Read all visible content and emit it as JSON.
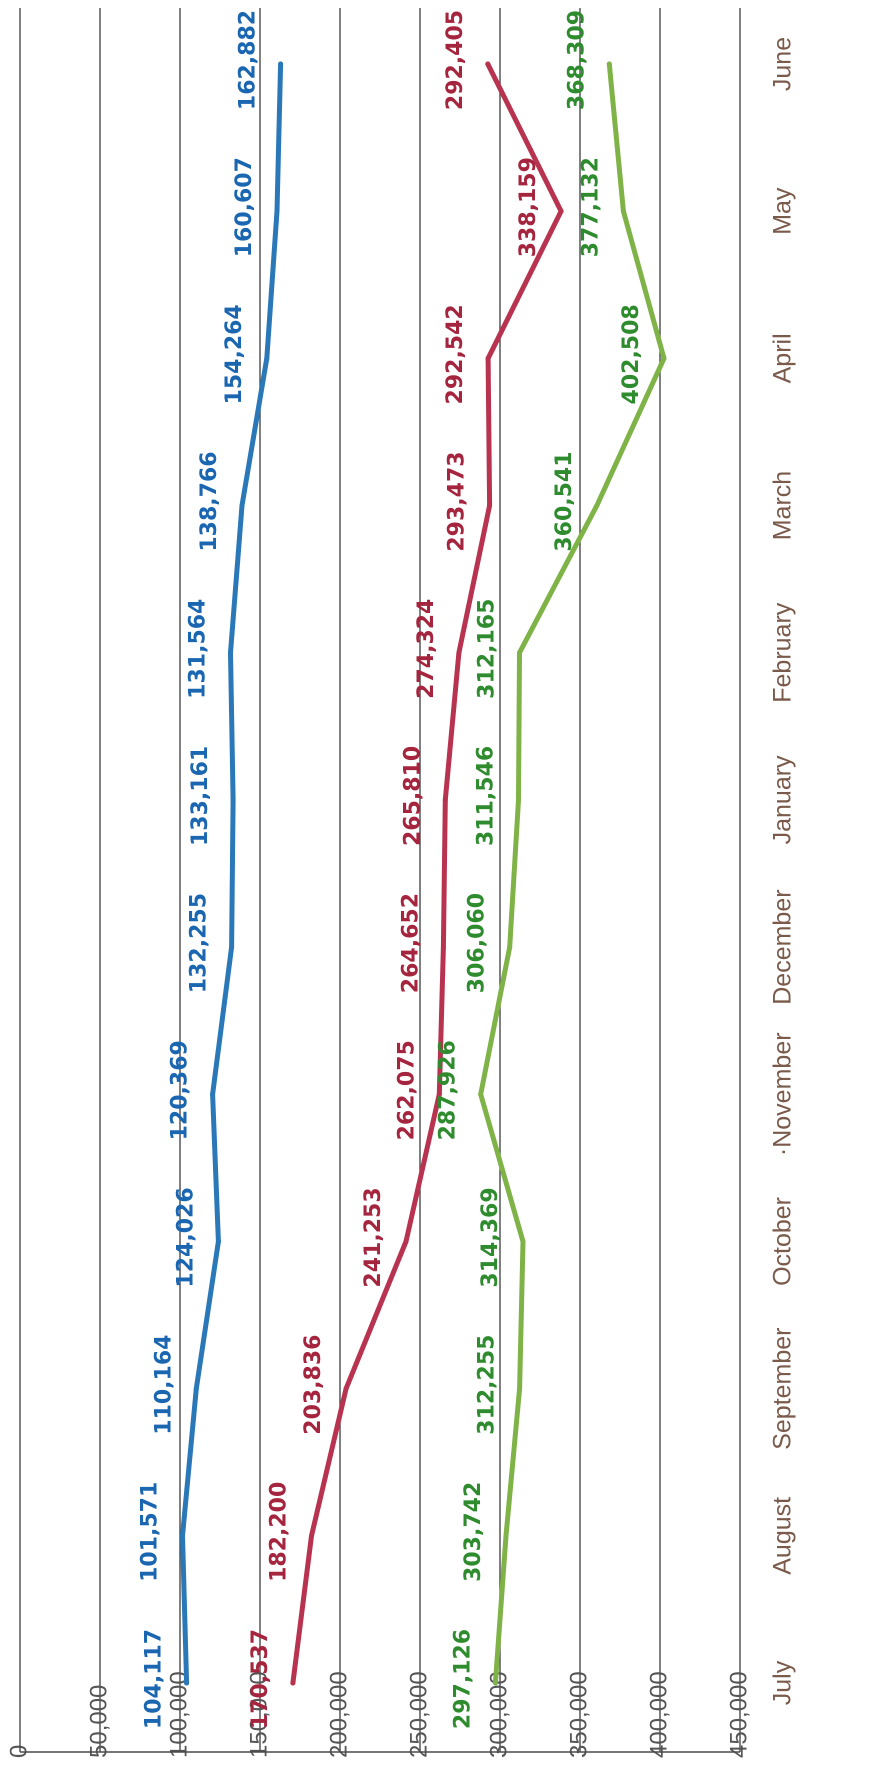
{
  "chart_data": {
    "type": "line",
    "title": "",
    "xlabel": "",
    "ylabel": "",
    "categories": [
      "July",
      "August",
      "September",
      "October",
      "November",
      "December",
      "January",
      "February",
      "March",
      "April",
      "May",
      "June"
    ],
    "category_tick_labels": [
      "July",
      "August",
      "September",
      "October",
      "·November",
      "December",
      "January",
      "February",
      "March",
      "April",
      "May",
      "June"
    ],
    "ylim": [
      0,
      450000
    ],
    "yticks": [
      0,
      50000,
      100000,
      150000,
      200000,
      250000,
      300000,
      350000,
      400000,
      450000
    ],
    "ytick_labels": [
      "0",
      "50,000",
      "100,000",
      "150,000",
      "200,000",
      "250,000",
      "300,000",
      "350,000",
      "400,000",
      "450,000"
    ],
    "grid": true,
    "legend": "none",
    "orientation": "rotated 90 degrees clockwise",
    "series": [
      {
        "color": "#7fb347",
        "label_color": "#2e8b2e",
        "values": [
          297126,
          303742,
          312255,
          314369,
          287926,
          306060,
          311546,
          312165,
          360541,
          402508,
          377132,
          368309
        ],
        "labels": [
          "297,126",
          "303,742",
          "312,255",
          "314,369",
          "287,926",
          "306,060",
          "311,546",
          "312,165",
          "360,541",
          "402,508",
          "377,132",
          "368,309"
        ]
      },
      {
        "color": "#b8334f",
        "label_color": "#a5243e",
        "values": [
          170537,
          182200,
          203836,
          241253,
          262075,
          264652,
          265810,
          274324,
          293473,
          292542,
          338159,
          292405
        ],
        "labels": [
          "170,537",
          "182,200",
          "203,836",
          "241,253",
          "262,075",
          "264,652",
          "265,810",
          "274,324",
          "293,473",
          "292,542",
          "338,159",
          "292,405"
        ]
      },
      {
        "color": "#2a78b8",
        "label_color": "#1a66b0",
        "values": [
          104117,
          101571,
          110164,
          124026,
          120369,
          132255,
          133161,
          131564,
          138766,
          154264,
          160607,
          162882
        ],
        "labels": [
          "104,117",
          "101,571",
          "110,164",
          "124,026",
          "120,369",
          "132,255",
          "133,161",
          "131,564",
          "138,766",
          "154,264",
          "160,607",
          "162,882"
        ]
      }
    ]
  }
}
